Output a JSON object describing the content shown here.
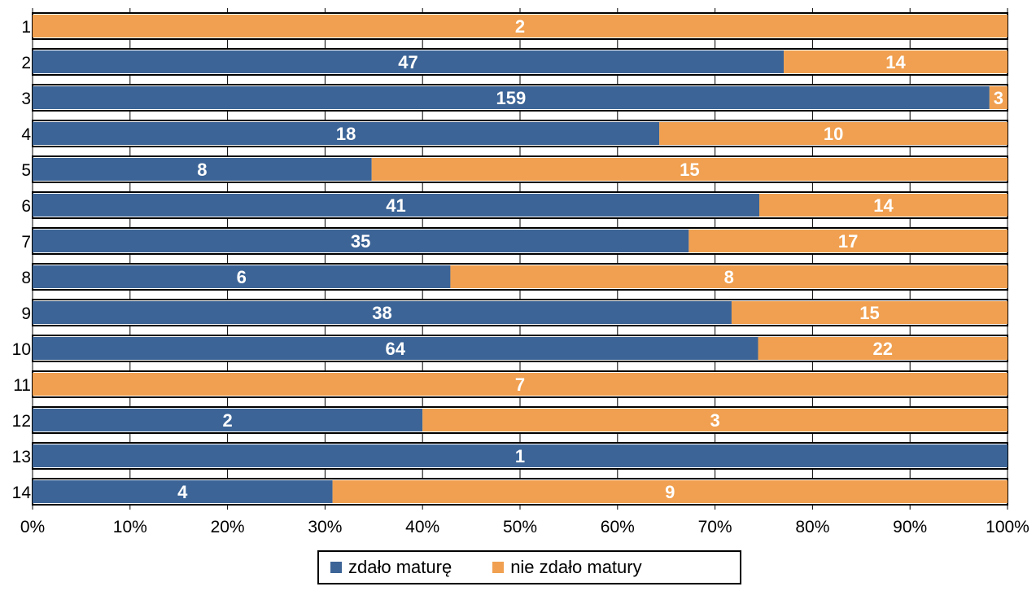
{
  "chart_data": {
    "type": "bar",
    "orientation": "horizontal",
    "stacked": "percent",
    "categories": [
      "1",
      "2",
      "3",
      "4",
      "5",
      "6",
      "7",
      "8",
      "9",
      "10",
      "11",
      "12",
      "13",
      "14"
    ],
    "series": [
      {
        "name": "zdało maturę",
        "color": "#3c6496",
        "values": [
          0,
          47,
          159,
          18,
          8,
          41,
          35,
          6,
          38,
          64,
          0,
          2,
          1,
          4
        ]
      },
      {
        "name": "nie zdało matury",
        "color": "#f0a050",
        "values": [
          2,
          14,
          3,
          10,
          15,
          14,
          17,
          8,
          15,
          22,
          7,
          3,
          0,
          9
        ]
      }
    ],
    "x_ticks": [
      "0%",
      "10%",
      "20%",
      "30%",
      "40%",
      "50%",
      "60%",
      "70%",
      "80%",
      "90%",
      "100%"
    ],
    "xlim": [
      0,
      100
    ],
    "grid": true,
    "legend_position": "bottom"
  }
}
